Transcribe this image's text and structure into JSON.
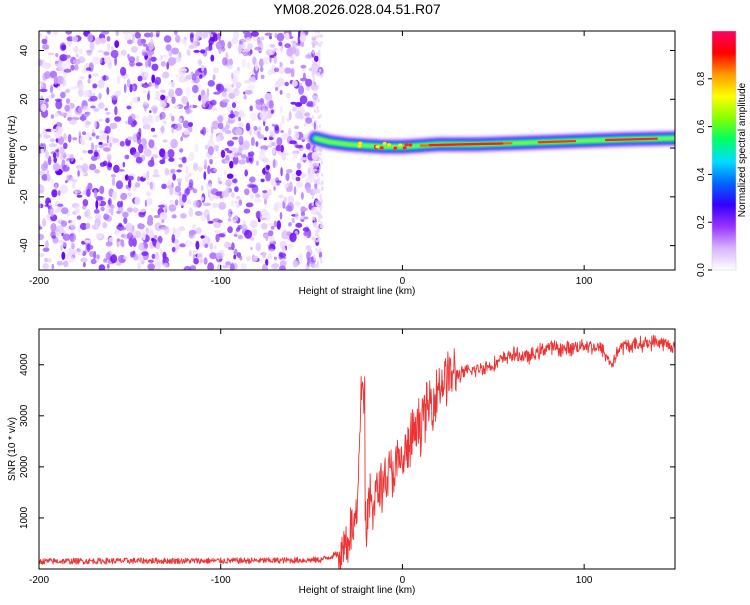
{
  "figure_title": "YM08.2026.028.04.51.R07",
  "chart_data": [
    {
      "type": "heatmap",
      "title": "YM08.2026.028.04.51.R07",
      "xlabel": "Height of straight line (km)",
      "ylabel": "Frequency (Hz)",
      "xlim": [
        -200,
        150
      ],
      "ylim": [
        -50,
        48
      ],
      "x_ticks": [
        -200,
        -100,
        0,
        100
      ],
      "x_tick_labels": [
        "-200",
        "-100",
        "0",
        "100"
      ],
      "y_ticks": [
        -40,
        -20,
        0,
        20,
        40
      ],
      "y_tick_labels": [
        "-40",
        "-20",
        "0",
        "20",
        "40"
      ],
      "noise_region_x": [
        -200,
        -45
      ],
      "signal_track": {
        "x": [
          -48,
          -40,
          -30,
          -20,
          -10,
          0,
          10,
          20,
          40,
          60,
          80,
          100,
          120,
          150
        ],
        "frequency": [
          4,
          2.5,
          1.5,
          1,
          0.5,
          0.5,
          1,
          1.5,
          1.5,
          2,
          2.5,
          3,
          3.5,
          4
        ]
      },
      "colorbar": {
        "label": "Normalized spectral amplitude",
        "range": [
          0,
          1
        ],
        "ticks": [
          0.0,
          0.2,
          0.4,
          0.6,
          0.8
        ],
        "tick_labels": [
          "0.0",
          "0.2",
          "0.4",
          "0.6",
          "0.8"
        ],
        "colors": [
          "#ffffff",
          "#d8b4ff",
          "#9933ff",
          "#3300ff",
          "#0066ff",
          "#00ddff",
          "#00ff66",
          "#88ff00",
          "#ffff00",
          "#ff9900",
          "#ff0000",
          "#ff0066"
        ]
      }
    },
    {
      "type": "line",
      "xlabel": "Height of straight line (km)",
      "ylabel": "SNR (10 * v/v)",
      "xlim": [
        -200,
        150
      ],
      "ylim": [
        0,
        4700
      ],
      "x_ticks": [
        -200,
        -100,
        0,
        100
      ],
      "x_tick_labels": [
        "-200",
        "-100",
        "0",
        "100"
      ],
      "y_ticks": [
        1000,
        2000,
        3000,
        4000
      ],
      "y_tick_labels": [
        "1000",
        "2000",
        "3000",
        "4000"
      ],
      "series": [
        {
          "name": "SNR",
          "color": "#ee3333",
          "x": [
            -200,
            -150,
            -100,
            -60,
            -45,
            -35,
            -30,
            -25,
            -22,
            -20,
            -18,
            -15,
            -10,
            -5,
            0,
            5,
            10,
            15,
            20,
            25,
            30,
            40,
            50,
            60,
            70,
            80,
            90,
            100,
            110,
            115,
            120,
            130,
            140,
            150
          ],
          "y": [
            150,
            160,
            160,
            170,
            180,
            300,
            600,
            1000,
            3800,
            600,
            1300,
            1400,
            1800,
            1900,
            2100,
            2500,
            2900,
            3200,
            3600,
            3800,
            3800,
            3900,
            4000,
            4200,
            4150,
            4350,
            4300,
            4400,
            4300,
            4000,
            4350,
            4400,
            4450,
            4350
          ]
        }
      ]
    }
  ]
}
